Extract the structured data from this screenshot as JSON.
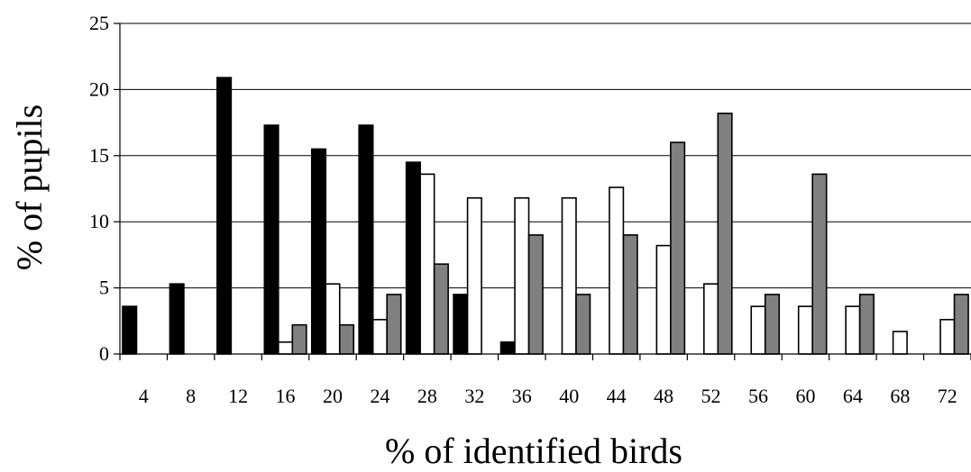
{
  "chart_data": {
    "type": "bar",
    "xlabel": "% of identified birds",
    "ylabel": "% of pupils",
    "ylim": [
      0,
      25
    ],
    "yticks": [
      0,
      5,
      10,
      15,
      20,
      25
    ],
    "grid": "horizontal",
    "legend": "none",
    "categories": [
      "4",
      "8",
      "12",
      "16",
      "20",
      "24",
      "28",
      "32",
      "36",
      "40",
      "44",
      "48",
      "52",
      "56",
      "60",
      "64",
      "68",
      "72"
    ],
    "series": [
      {
        "color": "#000000",
        "values": [
          3.6,
          5.3,
          20.9,
          17.3,
          15.5,
          17.3,
          14.5,
          4.5,
          0.9,
          0,
          0,
          0,
          0,
          0,
          0,
          0,
          0,
          0
        ]
      },
      {
        "color": "#ffffff",
        "values": [
          0,
          0,
          0,
          0.9,
          5.3,
          2.6,
          13.6,
          11.8,
          11.8,
          11.8,
          12.6,
          8.2,
          5.3,
          3.6,
          3.6,
          3.6,
          1.7,
          2.6
        ]
      },
      {
        "color": "#808080",
        "values": [
          0,
          0,
          0,
          2.2,
          2.2,
          4.5,
          6.8,
          0,
          9.0,
          4.5,
          9.0,
          16.0,
          18.2,
          4.5,
          13.6,
          4.5,
          0,
          4.5
        ]
      }
    ]
  }
}
